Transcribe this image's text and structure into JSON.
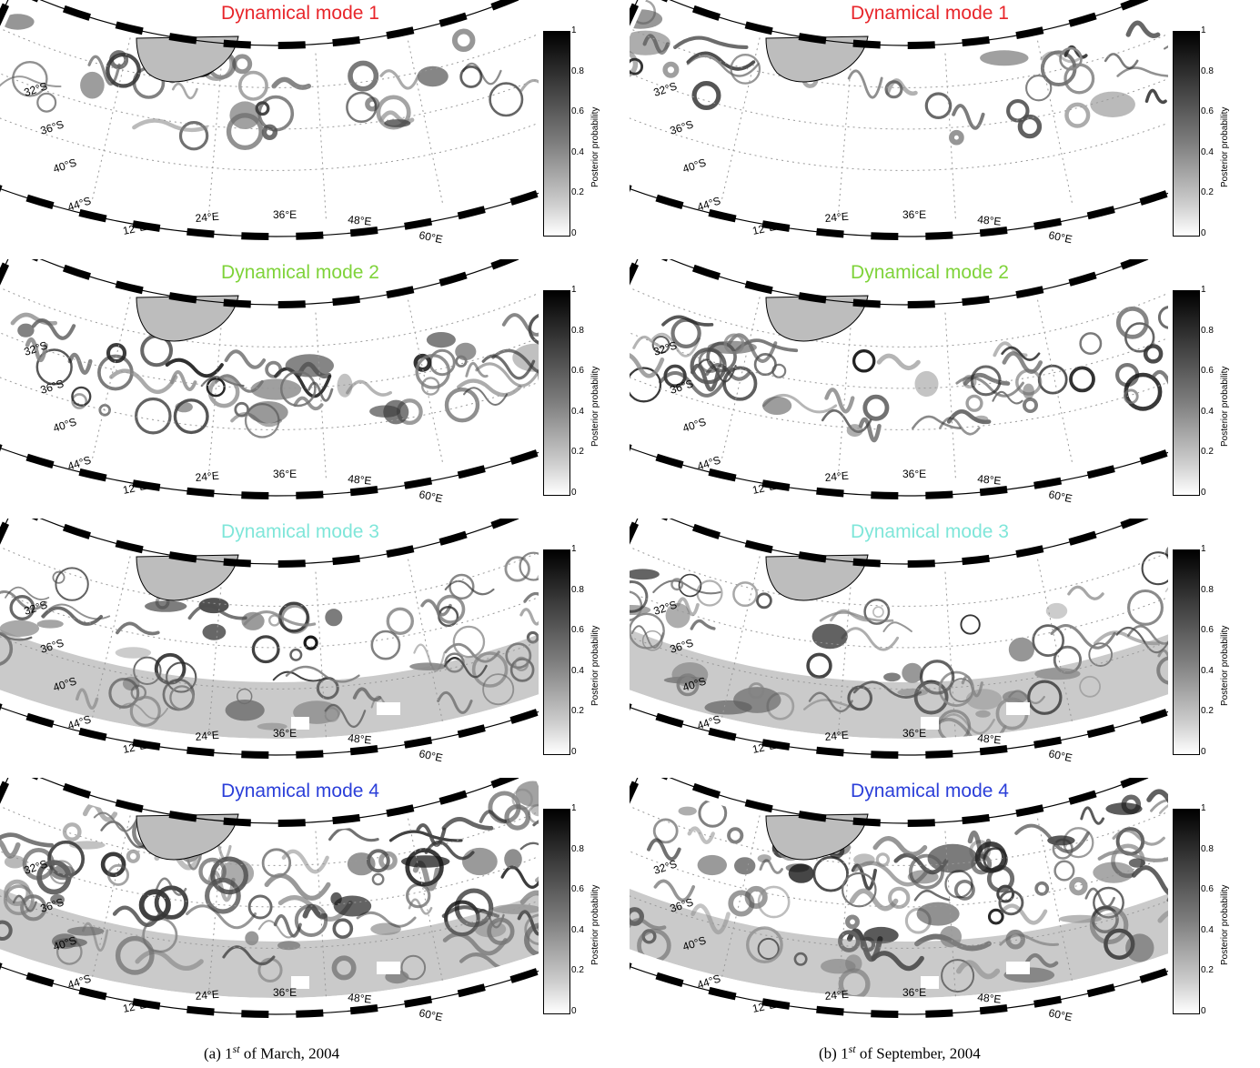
{
  "columns": [
    {
      "id": "a",
      "caption": {
        "prefix": "(a) 1",
        "sup": "st",
        "suffix": " of March, 2004"
      },
      "panels": [
        {
          "title": "Dynamical mode 1",
          "title_color": "#e8262b"
        },
        {
          "title": "Dynamical mode 2",
          "title_color": "#7fd33a"
        },
        {
          "title": "Dynamical mode 3",
          "title_color": "#7fe6d9"
        },
        {
          "title": "Dynamical mode 4",
          "title_color": "#2b3fd9"
        }
      ]
    },
    {
      "id": "b",
      "caption": {
        "prefix": "(b) 1",
        "sup": "st",
        "suffix": " of September, 2004"
      },
      "panels": [
        {
          "title": "Dynamical mode 1",
          "title_color": "#e8262b"
        },
        {
          "title": "Dynamical mode 2",
          "title_color": "#7fd33a"
        },
        {
          "title": "Dynamical mode 3",
          "title_color": "#7fe6d9"
        },
        {
          "title": "Dynamical mode 4",
          "title_color": "#2b3fd9"
        }
      ]
    }
  ],
  "colorbar": {
    "label": "Posterior probability",
    "ticks": [
      "1",
      "0.8",
      "0.6",
      "0.4",
      "0.2",
      "0"
    ]
  },
  "map": {
    "lat_labels": [
      "32°S",
      "36°S",
      "40°S",
      "44°S"
    ],
    "lon_labels": [
      "12°E",
      "24°E",
      "36°E",
      "48°E",
      "60°E"
    ]
  }
}
